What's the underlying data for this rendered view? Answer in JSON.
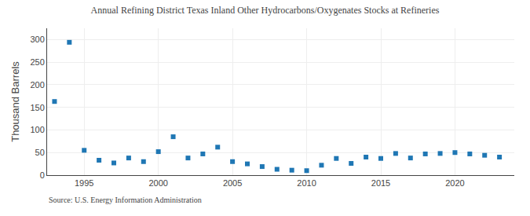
{
  "chart_data": {
    "type": "scatter",
    "title": "Annual Refining District Texas Inland Other Hydrocarbons/Oxygenates Stocks at Refineries",
    "ylabel": "Thousand Barrels",
    "annotations": [
      "Source: U.S. Energy Information Administration"
    ],
    "x": [
      1993,
      1994,
      1995,
      1996,
      1997,
      1998,
      1999,
      2000,
      2001,
      2002,
      2003,
      2004,
      2005,
      2006,
      2007,
      2008,
      2009,
      2010,
      2011,
      2012,
      2013,
      2014,
      2015,
      2016,
      2017,
      2018,
      2019,
      2020,
      2021,
      2022,
      2023
    ],
    "values": [
      163,
      294,
      55,
      33,
      27,
      38,
      30,
      52,
      85,
      38,
      47,
      62,
      30,
      25,
      19,
      13,
      11,
      10,
      22,
      37,
      26,
      40,
      37,
      48,
      38,
      47,
      48,
      50,
      47,
      44,
      40
    ],
    "marker": "square",
    "xlim": [
      1992.5,
      2024
    ],
    "ylim": [
      0,
      325
    ],
    "xticks": [
      1995,
      2000,
      2005,
      2010,
      2015,
      2020
    ],
    "yticks": [
      0,
      50,
      100,
      150,
      200,
      250,
      300
    ],
    "grid": true
  }
}
